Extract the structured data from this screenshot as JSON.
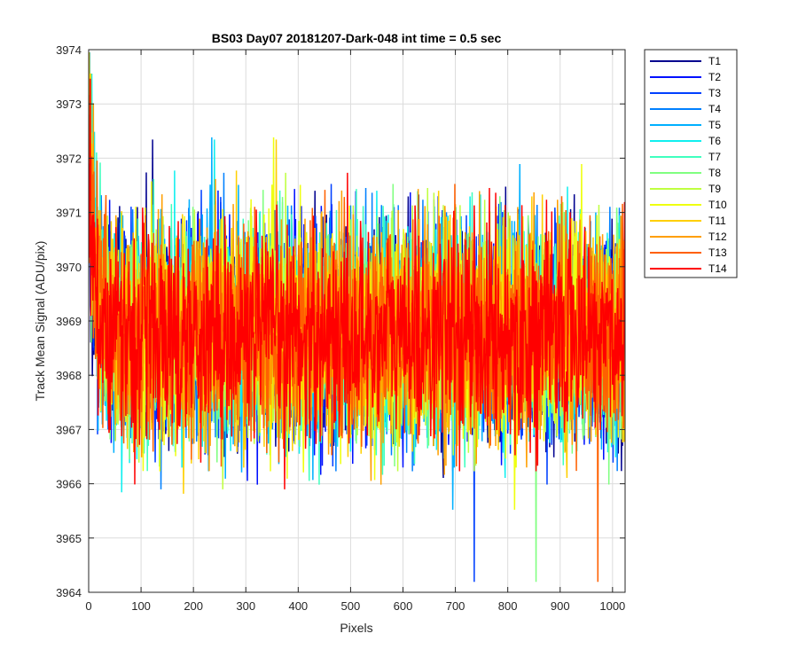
{
  "chart_data": {
    "type": "line",
    "title": "BS03 Day07 20181207-Dark-048 int time = 0.5 sec",
    "xlabel": "Pixels",
    "ylabel": "Track Mean Signal (ADU/pix)",
    "xlim": [
      0,
      1024
    ],
    "ylim": [
      3964,
      3974
    ],
    "xticks": [
      0,
      100,
      200,
      300,
      400,
      500,
      600,
      700,
      800,
      900,
      1000
    ],
    "yticks": [
      3964,
      3965,
      3966,
      3967,
      3968,
      3969,
      3970,
      3971,
      3972,
      3973,
      3974
    ],
    "xtick_labels": [
      "0",
      "100",
      "200",
      "300",
      "400",
      "500",
      "600",
      "700",
      "800",
      "900",
      "1000"
    ],
    "ytick_labels": [
      "3964",
      "3965",
      "3966",
      "3967",
      "3968",
      "3969",
      "3970",
      "3971",
      "3972",
      "3973",
      "3974"
    ],
    "grid": true,
    "legend_position": "outside top-right",
    "series_shape": {
      "n_points": 1024,
      "mean": 3968.75,
      "noise_std": 0.95,
      "start_values": [
        3970.4,
        3970.9,
        3971.2,
        3971.6,
        3972.1,
        3973.9,
        3972.4,
        3971.8,
        3972.6,
        3971.5,
        3973.2,
        3972.0,
        3972.8,
        3971.9
      ]
    },
    "series": [
      {
        "name": "T1",
        "color": "#00008f"
      },
      {
        "name": "T2",
        "color": "#0010ff"
      },
      {
        "name": "T3",
        "color": "#0040ff"
      },
      {
        "name": "T4",
        "color": "#0080ff"
      },
      {
        "name": "T5",
        "color": "#00b0ff"
      },
      {
        "name": "T6",
        "color": "#10efef"
      },
      {
        "name": "T7",
        "color": "#40ffbf"
      },
      {
        "name": "T8",
        "color": "#80ff80"
      },
      {
        "name": "T9",
        "color": "#bfff40"
      },
      {
        "name": "T10",
        "color": "#efff10"
      },
      {
        "name": "T11",
        "color": "#ffcf00"
      },
      {
        "name": "T12",
        "color": "#ff9f00"
      },
      {
        "name": "T13",
        "color": "#ff6000"
      },
      {
        "name": "T14",
        "color": "#ff0000"
      }
    ]
  }
}
